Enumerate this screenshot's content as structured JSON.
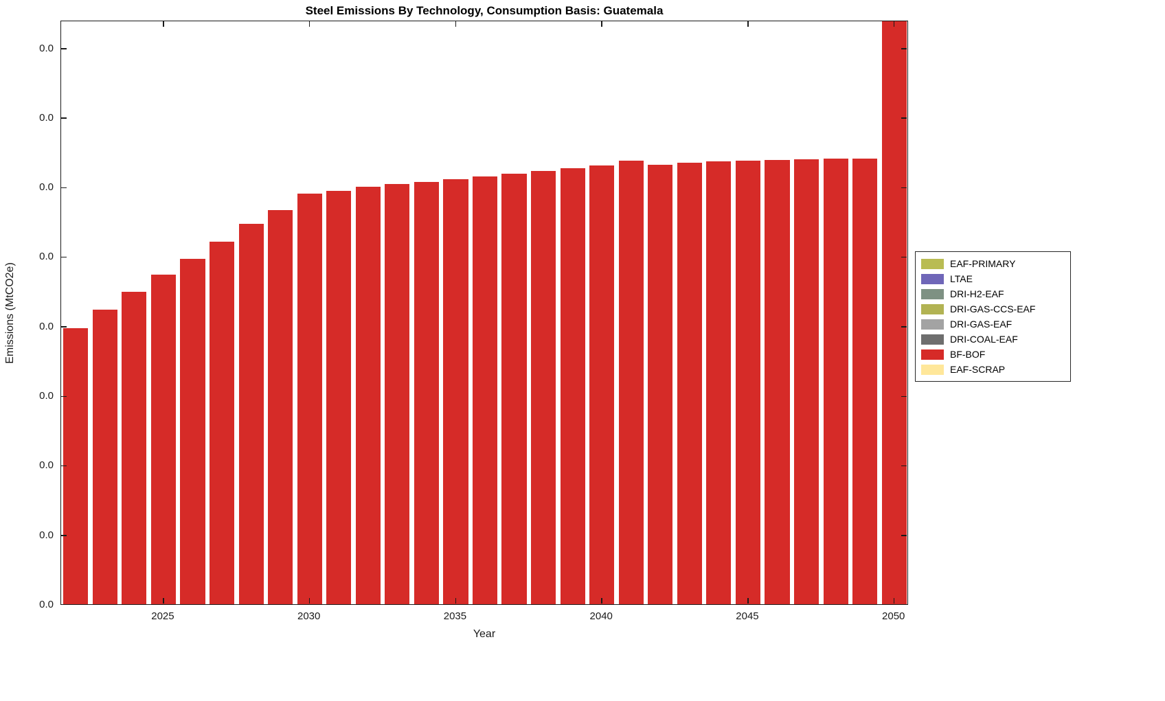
{
  "chart_data": {
    "type": "bar",
    "title": "Steel Emissions By Technology, Consumption Basis: Guatemala",
    "xlabel": "Year",
    "ylabel": "Emissions (MtCO2e)",
    "x_tick_labels": [
      "2025",
      "2030",
      "2035",
      "2040",
      "2045",
      "2050"
    ],
    "x_tick_years": [
      2025,
      2030,
      2035,
      2040,
      2045,
      2050
    ],
    "y_tick_labels": [
      "0.0",
      "0.0",
      "0.0",
      "0.0",
      "0.0",
      "0.0",
      "0.0",
      "0.0",
      "0.0"
    ],
    "y_axis_note": "All 9 y-axis tick labels display 0.0 (values round to 0.0 MtCO2e at one decimal); bar values below are expressed in gridline units estimated from the plot, with gridlines at units 0 through 8 and axis top at 8.4",
    "ylim_units": [
      0,
      8.4
    ],
    "grid": false,
    "categories": [
      2022,
      2023,
      2024,
      2025,
      2026,
      2027,
      2028,
      2029,
      2030,
      2031,
      2032,
      2033,
      2034,
      2035,
      2036,
      2037,
      2038,
      2039,
      2040,
      2041,
      2042,
      2043,
      2044,
      2045,
      2046,
      2047,
      2048,
      2049,
      2050
    ],
    "series": [
      {
        "name": "BF-BOF",
        "color": "#d62b28",
        "values": [
          3.97,
          4.23,
          4.49,
          4.74,
          4.97,
          5.21,
          5.47,
          5.67,
          5.9,
          5.94,
          6.0,
          6.04,
          6.07,
          6.11,
          6.15,
          6.19,
          6.23,
          6.27,
          6.31,
          6.38,
          6.32,
          6.35,
          6.37,
          6.38,
          6.39,
          6.4,
          6.41,
          6.41,
          9.5
        ]
      }
    ],
    "clipped_bars": [
      {
        "year": 2050,
        "note": "bar extends beyond the top of the axes and is clipped by the plot frame"
      }
    ],
    "legend": {
      "position": "right-outside",
      "entries": [
        {
          "label": "EAF-PRIMARY",
          "color": "#b9bc53"
        },
        {
          "label": "LTAE",
          "color": "#6f66b8"
        },
        {
          "label": "DRI-H2-EAF",
          "color": "#7e9183"
        },
        {
          "label": "DRI-GAS-CCS-EAF",
          "color": "#b2b353"
        },
        {
          "label": "DRI-GAS-EAF",
          "color": "#a3a3a3"
        },
        {
          "label": "DRI-COAL-EAF",
          "color": "#6e6e6e"
        },
        {
          "label": "BF-BOF",
          "color": "#d62b28"
        },
        {
          "label": "EAF-SCRAP",
          "color": "#ffe79a"
        }
      ]
    },
    "axis_color": "#1a1a1a",
    "background_color": "#ffffff"
  }
}
